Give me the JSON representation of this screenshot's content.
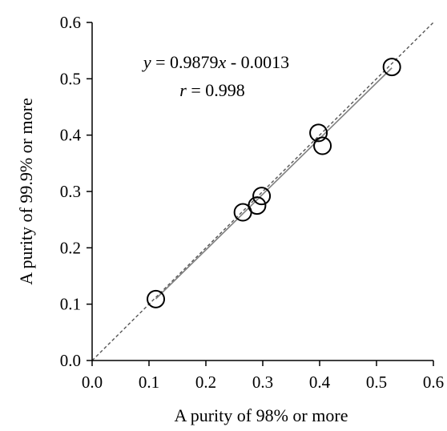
{
  "chart_data": {
    "type": "scatter",
    "xlabel": "A purity of 98% or more",
    "ylabel": "A purity of 99.9% or more",
    "xlim": [
      0.0,
      0.6
    ],
    "ylim": [
      0.0,
      0.6
    ],
    "x_ticks": [
      "0.0",
      "0.1",
      "0.2",
      "0.3",
      "0.4",
      "0.5",
      "0.6"
    ],
    "y_ticks": [
      "0.0",
      "0.1",
      "0.2",
      "0.3",
      "0.4",
      "0.5",
      "0.6"
    ],
    "x_tick_values": [
      0.0,
      0.1,
      0.2,
      0.3,
      0.4,
      0.5,
      0.6
    ],
    "y_tick_values": [
      0.0,
      0.1,
      0.2,
      0.3,
      0.4,
      0.5,
      0.6
    ],
    "grid": false,
    "legend": "none",
    "points": [
      {
        "x": 0.112,
        "y": 0.109
      },
      {
        "x": 0.265,
        "y": 0.263
      },
      {
        "x": 0.29,
        "y": 0.275
      },
      {
        "x": 0.298,
        "y": 0.292
      },
      {
        "x": 0.398,
        "y": 0.404
      },
      {
        "x": 0.405,
        "y": 0.381
      },
      {
        "x": 0.527,
        "y": 0.521
      }
    ],
    "regression": {
      "slope": 0.9879,
      "intercept": -0.0013,
      "x_range": [
        0.112,
        0.527
      ],
      "color": "#808080"
    },
    "identity_line": {
      "from": [
        0.0,
        0.0
      ],
      "to": [
        0.6,
        0.6
      ],
      "style": "dashed",
      "color": "#555555"
    },
    "annotations": {
      "equation": {
        "y": "y",
        "eq": " = 0.9879",
        "x": "x",
        "rest": " - 0.0013"
      },
      "correlation": {
        "r": "r",
        "rest": " = 0.998"
      }
    },
    "marker": {
      "shape": "open-circle",
      "color": "#000000"
    }
  }
}
